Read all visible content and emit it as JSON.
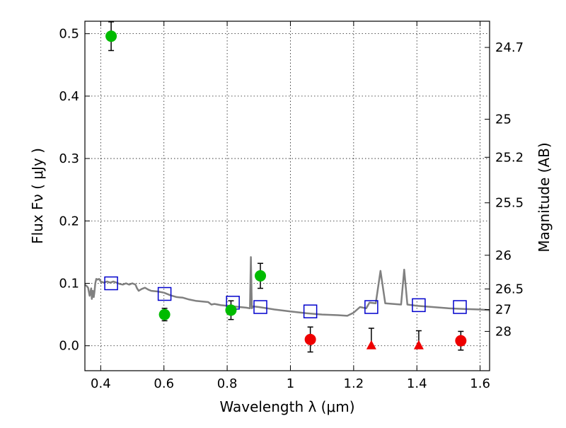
{
  "chart_data": {
    "type": "scatter",
    "title": "",
    "xlabel": "Wavelength  λ (μm)",
    "ylabel": "Flux  Fν  ( μJy )",
    "y2label": "Magnitude (AB)",
    "xlim": [
      0.35,
      1.63
    ],
    "ylim": [
      -0.04,
      0.52
    ],
    "grid": true,
    "x_ticks": [
      0.4,
      0.6,
      0.8,
      1.0,
      1.2,
      1.4,
      1.6
    ],
    "x_tick_labels": [
      "0.4",
      "0.6",
      "0.8",
      "1",
      "1.2",
      "1.4",
      "1.6"
    ],
    "y_ticks": [
      0.0,
      0.1,
      0.2,
      0.3,
      0.4,
      0.5
    ],
    "y_tick_labels": [
      "0.0",
      "0.1",
      "0.2",
      "0.3",
      "0.4",
      "0.5"
    ],
    "y2_ticks": [
      {
        "label": "24.7",
        "flux": 0.478
      },
      {
        "label": "25",
        "flux": 0.363
      },
      {
        "label": "25.2",
        "flux": 0.302
      },
      {
        "label": "25.5",
        "flux": 0.229
      },
      {
        "label": "26",
        "flux": 0.145
      },
      {
        "label": "26.5",
        "flux": 0.091
      },
      {
        "label": "27",
        "flux": 0.058
      },
      {
        "label": "28",
        "flux": 0.023
      }
    ],
    "series": [
      {
        "marker": "line",
        "color": "#808080",
        "x": [
          0.35,
          0.355,
          0.36,
          0.365,
          0.37,
          0.372,
          0.375,
          0.378,
          0.38,
          0.383,
          0.386,
          0.39,
          0.395,
          0.4,
          0.41,
          0.42,
          0.43,
          0.44,
          0.45,
          0.46,
          0.47,
          0.48,
          0.49,
          0.5,
          0.51,
          0.515,
          0.52,
          0.53,
          0.54,
          0.55,
          0.56,
          0.58,
          0.6,
          0.62,
          0.64,
          0.66,
          0.68,
          0.7,
          0.72,
          0.74,
          0.75,
          0.76,
          0.78,
          0.8,
          0.82,
          0.84,
          0.86,
          0.872,
          0.875,
          0.878,
          0.882,
          0.9,
          0.95,
          1.0,
          1.05,
          1.1,
          1.15,
          1.18,
          1.2,
          1.22,
          1.24,
          1.25,
          1.27,
          1.285,
          1.3,
          1.35,
          1.36,
          1.37,
          1.385,
          1.4,
          1.45,
          1.5,
          1.55,
          1.6,
          1.63
        ],
        "y": [
          0.098,
          0.096,
          0.093,
          0.08,
          0.092,
          0.075,
          0.088,
          0.078,
          0.085,
          0.1,
          0.107,
          0.106,
          0.107,
          0.103,
          0.101,
          0.103,
          0.101,
          0.103,
          0.101,
          0.099,
          0.098,
          0.1,
          0.098,
          0.1,
          0.098,
          0.092,
          0.088,
          0.091,
          0.093,
          0.09,
          0.088,
          0.087,
          0.085,
          0.081,
          0.078,
          0.077,
          0.074,
          0.072,
          0.071,
          0.07,
          0.066,
          0.067,
          0.065,
          0.064,
          0.063,
          0.062,
          0.061,
          0.06,
          0.142,
          0.06,
          0.063,
          0.062,
          0.058,
          0.055,
          0.052,
          0.05,
          0.049,
          0.048,
          0.053,
          0.062,
          0.06,
          0.069,
          0.068,
          0.12,
          0.068,
          0.066,
          0.122,
          0.066,
          0.065,
          0.064,
          0.062,
          0.06,
          0.059,
          0.058,
          0.057
        ]
      },
      {
        "marker": "square",
        "color": "#0000cc",
        "x": [
          0.433,
          0.602,
          0.818,
          0.905,
          1.063,
          1.256,
          1.406,
          1.536
        ],
        "y": [
          0.1,
          0.083,
          0.069,
          0.062,
          0.055,
          0.062,
          0.065,
          0.062
        ]
      },
      {
        "marker": "circle",
        "color": "#00bb00",
        "x": [
          0.433,
          0.602,
          0.812,
          0.905
        ],
        "y": [
          0.496,
          0.05,
          0.057,
          0.112
        ],
        "yerr": [
          0.023,
          0.01,
          0.015,
          0.02
        ]
      },
      {
        "marker": "circle",
        "color": "#ee0000",
        "x": [
          1.063,
          1.539
        ],
        "y": [
          0.01,
          0.008
        ],
        "yerr": [
          0.02,
          0.015
        ]
      },
      {
        "marker": "triangle",
        "color": "#ee0000",
        "x": [
          1.256,
          1.406
        ],
        "y": [
          0.0,
          0.0
        ],
        "yerr_up": [
          0.028,
          0.024
        ]
      }
    ]
  }
}
